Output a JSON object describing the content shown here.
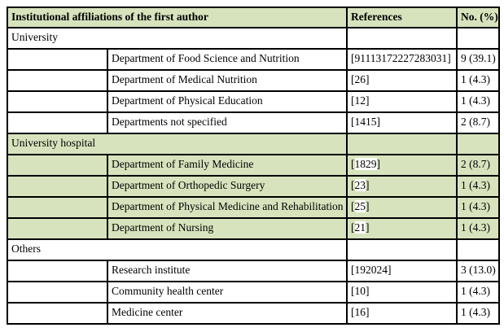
{
  "table": {
    "header": {
      "affiliations_label": "Institutional affiliations of the first author",
      "references_label": "References",
      "count_label": "No. (%)"
    },
    "colors": {
      "shade_green": "#d7e3bd",
      "border_black": "#000000",
      "reference_highlight_white": "#ffffff"
    },
    "rows": [
      {
        "type": "section",
        "shaded": false,
        "label": "University",
        "refs": "",
        "count": ""
      },
      {
        "type": "data",
        "shaded": false,
        "label": "Department of Food Science and Nutrition",
        "refs": "[91113172227283031]",
        "count": "9 (39.1)"
      },
      {
        "type": "data",
        "shaded": false,
        "label": "Department of Medical Nutrition",
        "refs": "[26]",
        "count": "1 (4.3)"
      },
      {
        "type": "data",
        "shaded": false,
        "label": "Department of Physical Education",
        "refs": "[12]",
        "count": "1 (4.3)"
      },
      {
        "type": "data",
        "shaded": false,
        "label": "Departments not specified",
        "refs": "[1415]",
        "count": "2 (8.7)"
      },
      {
        "type": "section",
        "shaded": true,
        "label": "University hospital",
        "refs": "",
        "count": ""
      },
      {
        "type": "data",
        "shaded": true,
        "label": "Department of Family Medicine",
        "refs": "[1829]",
        "count": "2 (8.7)"
      },
      {
        "type": "data",
        "shaded": true,
        "label": "Department of Orthopedic Surgery",
        "refs": "[23]",
        "count": "1 (4.3)"
      },
      {
        "type": "data",
        "shaded": true,
        "label": "Department of Physical Medicine and Rehabilitation",
        "refs": "[25]",
        "count": "1 (4.3)"
      },
      {
        "type": "data",
        "shaded": true,
        "label": "Department of Nursing",
        "refs": "[21]",
        "count": "1 (4.3)"
      },
      {
        "type": "section",
        "shaded": false,
        "label": "Others",
        "refs": "",
        "count": ""
      },
      {
        "type": "data",
        "shaded": false,
        "label": "Research institute",
        "refs": "[192024]",
        "count": "3 (13.0)"
      },
      {
        "type": "data",
        "shaded": false,
        "label": "Community health center",
        "refs": "[10]",
        "count": "1 (4.3)"
      },
      {
        "type": "data",
        "shaded": false,
        "label": "Medicine center",
        "refs": "[16]",
        "count": "1 (4.3)"
      }
    ]
  }
}
